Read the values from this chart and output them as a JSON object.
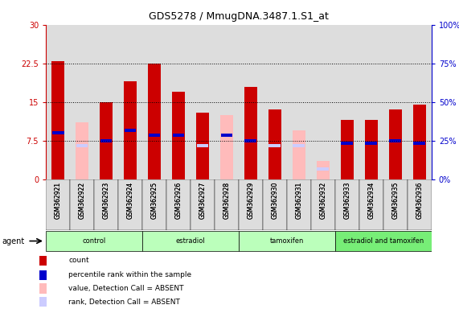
{
  "title": "GDS5278 / MmugDNA.3487.1.S1_at",
  "samples": [
    "GSM362921",
    "GSM362922",
    "GSM362923",
    "GSM362924",
    "GSM362925",
    "GSM362926",
    "GSM362927",
    "GSM362928",
    "GSM362929",
    "GSM362930",
    "GSM362931",
    "GSM362932",
    "GSM362933",
    "GSM362934",
    "GSM362935",
    "GSM362936"
  ],
  "red_values": [
    23.0,
    null,
    15.0,
    19.0,
    22.5,
    17.0,
    13.0,
    null,
    18.0,
    13.5,
    null,
    null,
    11.5,
    11.5,
    13.5,
    14.5
  ],
  "pink_values": [
    null,
    11.0,
    null,
    null,
    null,
    null,
    null,
    12.5,
    null,
    null,
    9.5,
    3.5,
    null,
    null,
    null,
    null
  ],
  "blue_rank_pct": [
    null,
    null,
    25.0,
    32.0,
    28.0,
    28.0,
    null,
    28.0,
    25.0,
    null,
    null,
    null,
    22.0,
    22.0,
    25.0,
    22.0
  ],
  "light_blue_rank_pct": [
    null,
    20.0,
    null,
    null,
    null,
    null,
    20.0,
    null,
    null,
    20.0,
    20.0,
    6.0,
    null,
    null,
    null,
    null
  ],
  "blue_rank_val": [
    9.0,
    null,
    7.5,
    9.5,
    8.5,
    8.5,
    null,
    8.5,
    7.5,
    null,
    null,
    null,
    7.0,
    7.0,
    7.5,
    7.0
  ],
  "light_blue_rank_val": [
    null,
    6.5,
    null,
    null,
    null,
    null,
    6.5,
    null,
    null,
    6.5,
    6.5,
    2.0,
    null,
    null,
    null,
    null
  ],
  "group_labels": [
    "control",
    "estradiol",
    "tamoxifen",
    "estradiol and tamoxifen"
  ],
  "group_starts": [
    0,
    4,
    8,
    12
  ],
  "group_ends": [
    3,
    7,
    11,
    15
  ],
  "group_colors": [
    "#bbffbb",
    "#bbffbb",
    "#bbffbb",
    "#77ee77"
  ],
  "ylim_left": [
    0,
    30
  ],
  "ylim_right": [
    0,
    100
  ],
  "yticks_left": [
    0,
    7.5,
    15,
    22.5,
    30
  ],
  "yticks_right": [
    0,
    25,
    50,
    75,
    100
  ],
  "ytick_labels_left": [
    "0",
    "7.5",
    "15",
    "22.5",
    "30"
  ],
  "ytick_labels_right": [
    "0%",
    "25%",
    "50%",
    "75%",
    "100%"
  ],
  "left_axis_color": "#cc0000",
  "right_axis_color": "#0000cc",
  "background_color": "#ffffff",
  "plot_bg_color": "#ffffff",
  "col_bg_color": "#dddddd",
  "legend_labels": [
    "count",
    "percentile rank within the sample",
    "value, Detection Call = ABSENT",
    "rank, Detection Call = ABSENT"
  ],
  "legend_colors": [
    "#cc0000",
    "#0000cc",
    "#ffbbbb",
    "#ccccff"
  ]
}
